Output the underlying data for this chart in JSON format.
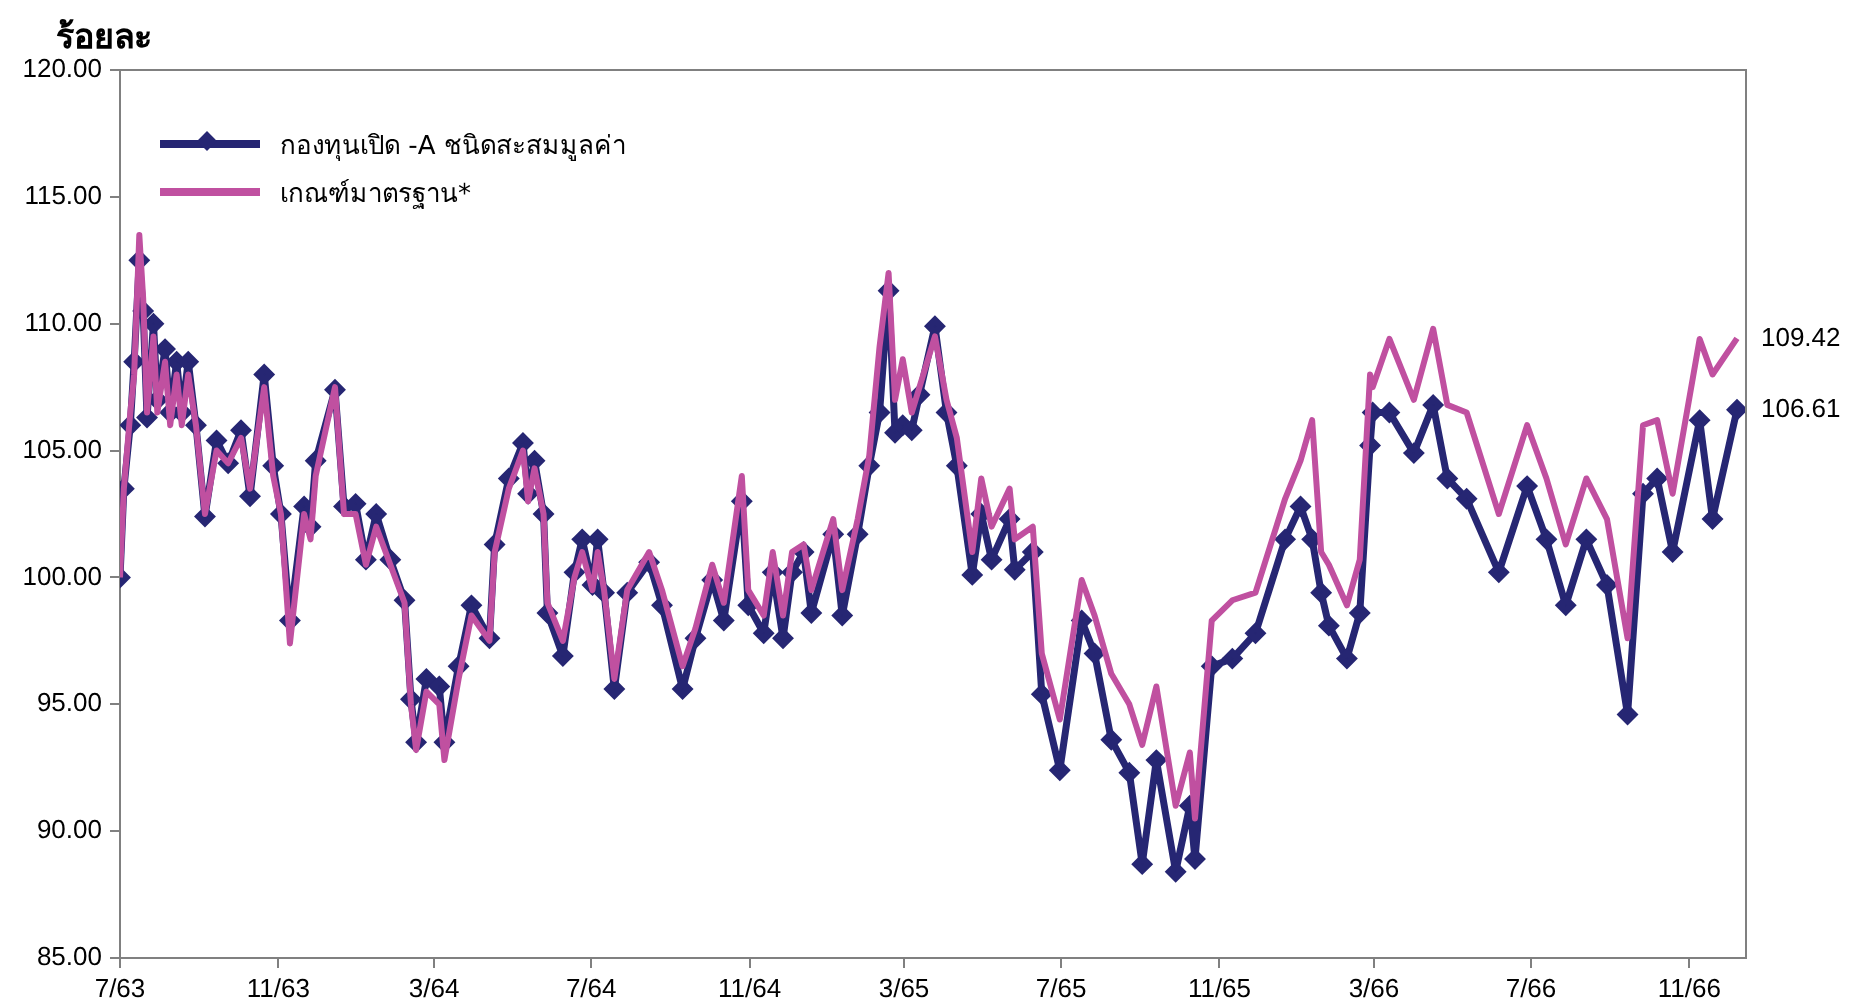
{
  "chart_data": {
    "type": "line",
    "ylabel": "ร้อยละ",
    "x": [
      "2563-07-01",
      "2563-07-04",
      "2563-07-09",
      "2563-07-12",
      "2563-07-16",
      "2563-07-19",
      "2563-07-22",
      "2563-07-27",
      "2563-07-30",
      "2563-08-05",
      "2563-08-09",
      "2563-08-14",
      "2563-08-18",
      "2563-08-23",
      "2563-08-29",
      "2563-09-05",
      "2563-09-14",
      "2563-09-23",
      "2563-10-03",
      "2563-10-10",
      "2563-10-21",
      "2563-10-28",
      "2563-11-03",
      "2563-11-10",
      "2563-11-21",
      "2563-11-26",
      "2563-11-30",
      "2563-12-15",
      "2563-12-22",
      "2563-12-31",
      "2564-01-08",
      "2564-01-16",
      "2564-01-27",
      "2564-02-07",
      "2564-02-12",
      "2564-02-16",
      "2564-02-24",
      "2564-03-05",
      "2564-03-09",
      "2564-03-20",
      "2564-03-30",
      "2564-04-13",
      "2564-04-17",
      "2564-04-28",
      "2564-05-09",
      "2564-05-13",
      "2564-05-18",
      "2564-05-25",
      "2564-05-28",
      "2564-06-09",
      "2564-06-18",
      "2564-06-24",
      "2564-07-02",
      "2564-07-06",
      "2564-07-11",
      "2564-07-19",
      "2564-07-29",
      "2564-08-15",
      "2564-08-25",
      "2564-09-10",
      "2564-09-20",
      "2564-10-03",
      "2564-10-12",
      "2564-10-26",
      "2564-10-31",
      "2564-11-12",
      "2564-11-19",
      "2564-11-27",
      "2564-12-04",
      "2564-12-13",
      "2564-12-19",
      "2565-01-05",
      "2565-01-12",
      "2565-01-24",
      "2565-02-02",
      "2565-02-10",
      "2565-02-17",
      "2565-02-22",
      "2565-02-28",
      "2565-03-07",
      "2565-03-13",
      "2565-03-25",
      "2565-04-03",
      "2565-04-11",
      "2565-04-23",
      "2565-04-30",
      "2565-05-08",
      "2565-05-22",
      "2565-05-26",
      "2565-06-09",
      "2565-06-16",
      "2565-06-30",
      "2565-07-17",
      "2565-07-27",
      "2565-08-09",
      "2565-08-23",
      "2565-09-02",
      "2565-09-13",
      "2565-09-28",
      "2565-10-09",
      "2565-10-13",
      "2565-10-26",
      "2565-11-11",
      "2565-11-29",
      "2565-12-22",
      "2566-01-03",
      "2566-01-12",
      "2566-01-19",
      "2566-01-25",
      "2566-02-08",
      "2566-02-18",
      "2566-02-26",
      "2566-02-28",
      "2566-03-13",
      "2566-04-01",
      "2566-04-16",
      "2566-04-27",
      "2566-05-12",
      "2566-06-06",
      "2566-06-28",
      "2566-07-13",
      "2566-07-28",
      "2566-08-13",
      "2566-08-29",
      "2566-09-14",
      "2566-09-26",
      "2566-10-07",
      "2566-10-19",
      "2566-11-09",
      "2566-11-19",
      "2566-12-08"
    ],
    "series": [
      {
        "name": "กองทุนเปิด -A ชนิดสะสมมูลค่า",
        "color": "#262673",
        "marker": "diamond",
        "values": [
          100,
          103.5,
          106,
          108.5,
          112.5,
          110.5,
          106.3,
          110,
          107,
          109,
          106.5,
          108.5,
          106.5,
          108.5,
          106,
          102.4,
          105.4,
          104.5,
          105.8,
          103.2,
          108,
          104.4,
          102.5,
          98.3,
          102.8,
          102,
          104.6,
          107.4,
          102.8,
          102.9,
          100.7,
          102.5,
          100.7,
          99.1,
          95.2,
          93.5,
          96,
          95.7,
          93.5,
          96.5,
          98.9,
          97.6,
          101.3,
          103.9,
          105.3,
          103.3,
          104.6,
          102.5,
          98.6,
          96.9,
          100.2,
          101.5,
          99.7,
          101.5,
          99.4,
          95.6,
          99.4,
          100.6,
          98.9,
          95.6,
          97.6,
          99.9,
          98.3,
          103,
          98.9,
          97.8,
          100.2,
          97.6,
          100.2,
          101,
          98.6,
          101.7,
          98.5,
          101.7,
          104.4,
          106.5,
          111.3,
          105.7,
          106,
          105.8,
          107.2,
          109.9,
          106.5,
          104.4,
          100.1,
          102.5,
          100.7,
          102.3,
          100.3,
          101,
          95.4,
          92.4,
          98.3,
          97,
          93.6,
          92.3,
          88.7,
          92.8,
          88.4,
          91,
          88.9,
          96.5,
          96.8,
          97.8,
          101.5,
          102.8,
          101.5,
          99.4,
          98.1,
          96.8,
          98.6,
          105.2,
          106.5,
          106.5,
          104.9,
          106.8,
          103.9,
          103.1,
          100.2,
          103.6,
          101.5,
          98.9,
          101.5,
          99.7,
          94.6,
          103.3,
          103.9,
          101,
          106.2,
          102.3,
          106.61
        ]
      },
      {
        "name": "เกณฑ์มาตรฐาน*",
        "color": "#c050a0",
        "marker": "none",
        "values": [
          100,
          103.5,
          106.5,
          108,
          113.5,
          111,
          106.5,
          109.5,
          106.5,
          108.5,
          106,
          108,
          106,
          108,
          106,
          102.5,
          105,
          104.5,
          105.5,
          103.5,
          107.5,
          104,
          102.5,
          97.4,
          102.5,
          101.5,
          104,
          107.5,
          102.5,
          102.5,
          100.5,
          102,
          100.5,
          99,
          95,
          93.2,
          95.5,
          95,
          92.8,
          96,
          98.5,
          97.5,
          101,
          103.5,
          105,
          103,
          104.3,
          102.5,
          99,
          97.5,
          100,
          101,
          99.5,
          101,
          99.5,
          96,
          99.5,
          101,
          99.5,
          96.5,
          98,
          100.5,
          99,
          104,
          99.5,
          98.5,
          101,
          98.5,
          101,
          101.3,
          99.5,
          102.3,
          99.5,
          102.3,
          104.8,
          109.1,
          112,
          107,
          108.6,
          106.5,
          107.5,
          109.5,
          107,
          105.5,
          101,
          103.9,
          102,
          103.5,
          101.5,
          102,
          97,
          94.4,
          99.9,
          98.5,
          96.2,
          95,
          93.4,
          95.7,
          91,
          93.1,
          90.5,
          98.3,
          99.1,
          99.4,
          103.1,
          104.6,
          106.2,
          101,
          100.5,
          98.9,
          100.7,
          108,
          107.5,
          109.4,
          107,
          109.8,
          106.8,
          106.5,
          102.5,
          106,
          103.9,
          101.3,
          103.9,
          102.3,
          97.6,
          106,
          106.2,
          103.3,
          109.4,
          108,
          109.42
        ]
      }
    ],
    "xlim": [
      "2563-07-01",
      "2566-12-15"
    ],
    "xticks": [
      {
        "value": "2563-07-01",
        "label": "7/63"
      },
      {
        "value": "2563-11-01",
        "label": "11/63"
      },
      {
        "value": "2564-03-01",
        "label": "3/64"
      },
      {
        "value": "2564-07-01",
        "label": "7/64"
      },
      {
        "value": "2564-11-01",
        "label": "11/64"
      },
      {
        "value": "2565-03-01",
        "label": "3/65"
      },
      {
        "value": "2565-07-01",
        "label": "7/65"
      },
      {
        "value": "2565-11-01",
        "label": "11/65"
      },
      {
        "value": "2566-03-01",
        "label": "3/66"
      },
      {
        "value": "2566-07-01",
        "label": "7/66"
      },
      {
        "value": "2566-11-01",
        "label": "11/66"
      }
    ],
    "ylim": [
      85,
      120
    ],
    "yticks": [
      {
        "value": 85,
        "label": "85.00"
      },
      {
        "value": 90,
        "label": "90.00"
      },
      {
        "value": 95,
        "label": "95.00"
      },
      {
        "value": 100,
        "label": "100.00"
      },
      {
        "value": 105,
        "label": "105.00"
      },
      {
        "value": 110,
        "label": "110.00"
      },
      {
        "value": 115,
        "label": "115.00"
      },
      {
        "value": 120,
        "label": "120.00"
      }
    ],
    "annotations": [
      {
        "text": "109.42",
        "x": "2566-12-08",
        "y": 109.42
      },
      {
        "text": "106.61",
        "x": "2566-12-08",
        "y": 106.61
      }
    ],
    "grid": false,
    "legend": "top left",
    "line_style": "solid"
  }
}
